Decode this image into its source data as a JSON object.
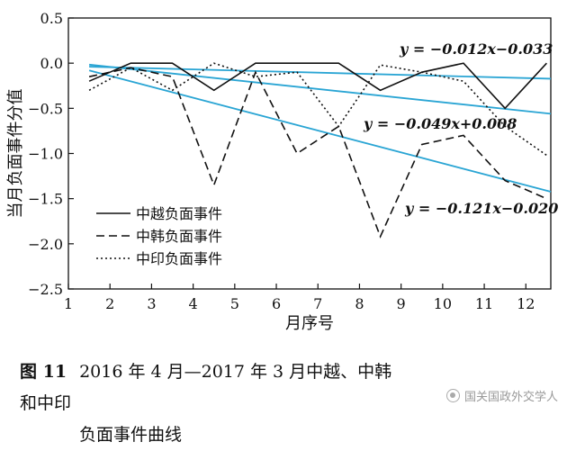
{
  "chart_data": {
    "type": "line",
    "xlabel": "月序号",
    "ylabel": "当月负面事件分值",
    "xlim": [
      1,
      12.6
    ],
    "ylim": [
      -2.5,
      0.5
    ],
    "xticks": [
      1,
      2,
      3,
      4,
      5,
      6,
      7,
      8,
      9,
      10,
      11,
      12
    ],
    "yticks": [
      0.5,
      0.0,
      -0.5,
      -1.0,
      -1.5,
      -2.0,
      -2.5
    ],
    "ytick_labels": [
      "0.5",
      "0.0",
      "−0.5",
      "−1.0",
      "−1.5",
      "−2.0",
      "−2.5"
    ],
    "grid": false,
    "legend_position": "bottom-left",
    "series": [
      {
        "name": "中越负面事件",
        "style": "solid",
        "x": [
          1.5,
          2.5,
          3.5,
          4.5,
          5.5,
          6.5,
          7.5,
          8.5,
          9.5,
          10.5,
          11.5,
          12.5
        ],
        "values": [
          -0.2,
          0.0,
          0.0,
          -0.3,
          0.0,
          0.0,
          0.0,
          -0.3,
          -0.1,
          0.0,
          -0.5,
          0.0
        ]
      },
      {
        "name": "中韩负面事件",
        "style": "dashed",
        "x": [
          1.5,
          2.5,
          3.5,
          4.5,
          5.5,
          6.5,
          7.5,
          8.5,
          9.5,
          10.5,
          11.5,
          12.5
        ],
        "values": [
          -0.15,
          -0.05,
          -0.15,
          -1.35,
          -0.1,
          -1.0,
          -0.7,
          -1.92,
          -0.9,
          -0.8,
          -1.3,
          -1.5
        ]
      },
      {
        "name": "中印负面事件",
        "style": "dotted",
        "x": [
          1.5,
          2.5,
          3.5,
          4.5,
          5.5,
          6.5,
          7.5,
          8.5,
          9.5,
          10.5,
          11.5,
          12.5
        ],
        "values": [
          -0.3,
          -0.05,
          -0.3,
          0.0,
          -0.15,
          -0.1,
          -0.7,
          -0.02,
          -0.1,
          -0.2,
          -0.7,
          -1.02
        ]
      }
    ],
    "trendlines": [
      {
        "label": "y = −0.012x−0.033",
        "color": "#2aa5d4",
        "slope": -0.012,
        "intercept": -0.033
      },
      {
        "label": "y = −0.049x+0.008",
        "color": "#2aa5d4",
        "slope": -0.049,
        "intercept": 0.008
      },
      {
        "label": "y = −0.121x−0.020",
        "color": "#2aa5d4",
        "slope": -0.121,
        "intercept": -0.02
      }
    ]
  },
  "caption": {
    "figure_number": "图 11",
    "title_line1": "2016 年 4 月—2017 年 3 月中越、中韩和中印",
    "title_line2": "负面事件曲线"
  },
  "watermark": {
    "text": "国关国政外交学人"
  }
}
